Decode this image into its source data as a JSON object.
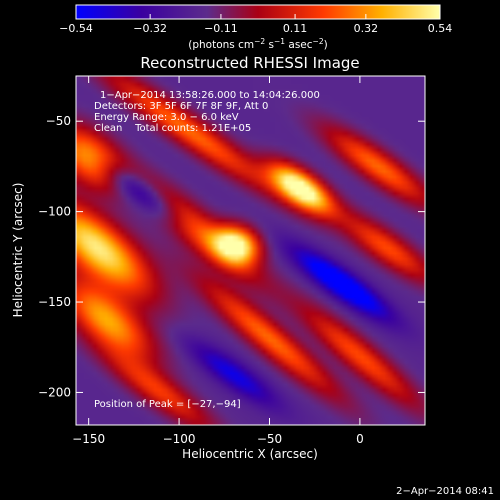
{
  "chart_data": {
    "type": "heatmap",
    "title": "Reconstructed RHESSI Image",
    "xlabel": "Heliocentric X (arcsec)",
    "ylabel": "Heliocentric Y (arcsec)",
    "xlim": [
      -157,
      36
    ],
    "ylim": [
      -218,
      -25
    ],
    "x_ticks": [
      -150,
      -100,
      -50,
      0
    ],
    "x_tick_labels": [
      "−150",
      "−100",
      "−50",
      "0"
    ],
    "y_ticks": [
      -50,
      -100,
      -150,
      -200
    ],
    "y_tick_labels": [
      "−50",
      "−100",
      "−150",
      "−200"
    ],
    "colorbar": {
      "range": [
        -0.54,
        0.54
      ],
      "ticks": [
        -0.54,
        -0.32,
        -0.11,
        0.11,
        0.32,
        0.54
      ],
      "tick_labels": [
        "−0.54",
        "−0.32",
        "−0.11",
        "0.11",
        "0.32",
        "0.54"
      ],
      "colors": [
        "#0000ff",
        "#3a00a0",
        "#5c2b8c",
        "#aa0014",
        "#ff3a00",
        "#ffb000",
        "#ffffaa"
      ]
    },
    "units_label": "(photons cm",
    "units_exp1": "−2",
    "units_mid": " s",
    "units_exp2": "−1",
    "units_mid2": " asec",
    "units_exp3": "−2",
    "units_end": ")",
    "info_lines": [
      "1−Apr−2014 13:58:26.000 to 14:04:26.000",
      "Detectors: 3F 5F 6F 7F 8F 9F, Att 0",
      "Energy Range: 3.0 − 6.0 keV",
      "Clean    Total counts: 1.21E+05"
    ],
    "peak_label": "Position of Peak = [−27,−94]",
    "peak_position": [
      -27,
      -94
    ],
    "timestamp": "2−Apr−2014 08:41",
    "background_value": -0.2,
    "features": [
      {
        "name": "peak-blob",
        "x": -33,
        "y": -87,
        "sx": 14,
        "sy": 6,
        "angle": 35,
        "amp": 0.85
      },
      {
        "name": "left-ridge-upper",
        "x": -150,
        "y": -70,
        "sx": 16,
        "sy": 9,
        "angle": 40,
        "amp": 0.55
      },
      {
        "name": "left-ridge-middle",
        "x": -145,
        "y": -120,
        "sx": 26,
        "sy": 10,
        "angle": 40,
        "amp": 0.7
      },
      {
        "name": "left-ridge-lower",
        "x": -140,
        "y": -160,
        "sx": 22,
        "sy": 9,
        "angle": 40,
        "amp": 0.55
      },
      {
        "name": "central-blob",
        "x": -68,
        "y": -118,
        "sx": 9,
        "sy": 7,
        "angle": 20,
        "amp": 0.7
      },
      {
        "name": "center-ridge",
        "x": -90,
        "y": -110,
        "sx": 30,
        "sy": 7,
        "angle": 40,
        "amp": 0.45
      },
      {
        "name": "upper-red-band",
        "x": -95,
        "y": -55,
        "sx": 40,
        "sy": 6,
        "angle": 35,
        "amp": 0.45
      },
      {
        "name": "right-upper-band",
        "x": 10,
        "y": -75,
        "sx": 25,
        "sy": 6,
        "angle": 35,
        "amp": 0.45
      },
      {
        "name": "right-middle-band",
        "x": 15,
        "y": -120,
        "sx": 22,
        "sy": 6,
        "angle": 35,
        "amp": 0.4
      },
      {
        "name": "lower-orange-band",
        "x": -50,
        "y": -170,
        "sx": 35,
        "sy": 6,
        "angle": 40,
        "amp": 0.45
      },
      {
        "name": "lower-red-band",
        "x": 0,
        "y": -180,
        "sx": 30,
        "sy": 6,
        "angle": 40,
        "amp": 0.4
      },
      {
        "name": "bottom-left-band",
        "x": -110,
        "y": -200,
        "sx": 25,
        "sy": 6,
        "angle": 35,
        "amp": 0.35
      },
      {
        "name": "blue-trough-right",
        "x": -10,
        "y": -140,
        "sx": 22,
        "sy": 5,
        "angle": 35,
        "amp": -0.5
      },
      {
        "name": "blue-trough-left",
        "x": -120,
        "y": -90,
        "sx": 20,
        "sy": 5,
        "angle": 35,
        "amp": -0.35
      },
      {
        "name": "blue-trough-lower",
        "x": -70,
        "y": -190,
        "sx": 20,
        "sy": 5,
        "angle": 35,
        "amp": -0.3
      }
    ]
  }
}
